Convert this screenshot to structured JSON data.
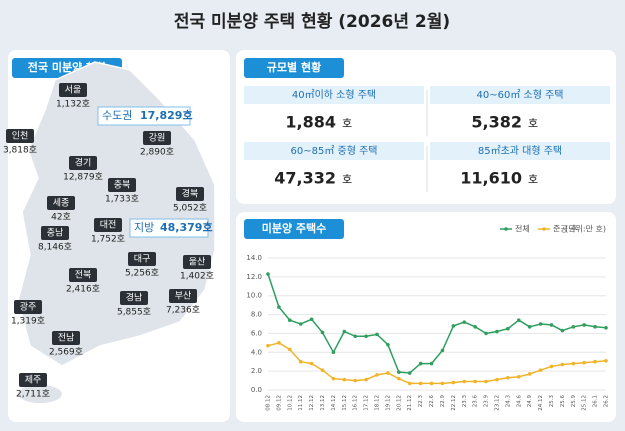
{
  "title": "전국 미분양 주택 현황 (2026년 2월)",
  "regional": {
    "heading": "전국 미분양 현황",
    "regions": [
      {
        "name": "서울",
        "value": "1,132호"
      },
      {
        "name": "인천",
        "value": "3,818호"
      },
      {
        "name": "강원",
        "value": "2,890호"
      },
      {
        "name": "경기",
        "value": "12,879호"
      },
      {
        "name": "충북",
        "value": "1,733호"
      },
      {
        "name": "경북",
        "value": "5,052호"
      },
      {
        "name": "세종",
        "value": "42호"
      },
      {
        "name": "충남",
        "value": "8,146호"
      },
      {
        "name": "대전",
        "value": "1,752호"
      },
      {
        "name": "대구",
        "value": "5,256호"
      },
      {
        "name": "울산",
        "value": "1,402호"
      },
      {
        "name": "전북",
        "value": "2,416호"
      },
      {
        "name": "경남",
        "value": "5,855호"
      },
      {
        "name": "부산",
        "value": "7,236호"
      },
      {
        "name": "광주",
        "value": "1,319호"
      },
      {
        "name": "전남",
        "value": "2,569호"
      },
      {
        "name": "제주",
        "value": "2,711호"
      }
    ],
    "metro": {
      "name": "수도권",
      "value": "17,829호"
    },
    "nonmetro": {
      "name": "지방",
      "value": "48,379호"
    }
  },
  "by_size": {
    "heading": "규모별 현황",
    "unit": "호",
    "cells": [
      {
        "label": "40㎡이하 소형 주택",
        "value": "1,884"
      },
      {
        "label": "40~60㎡ 소형 주택",
        "value": "5,382"
      },
      {
        "label": "60~85㎡ 중형 주택",
        "value": "47,332"
      },
      {
        "label": "85㎡초과 대형 주택",
        "value": "11,610"
      }
    ]
  },
  "chart_data": {
    "type": "line",
    "title": "미분양 주택수",
    "unit_note": "(단위:만 호)",
    "categories": [
      "08.12",
      "09.12",
      "10.12",
      "11.12",
      "12.12",
      "13.12",
      "14.12",
      "15.12",
      "16.12",
      "17.12",
      "18.12",
      "19.12",
      "20.12",
      "21.12",
      "22.3",
      "22.6",
      "22.9",
      "22.12",
      "23.3",
      "23.6",
      "23.9",
      "23.12",
      "24.3",
      "24.6",
      "24.9",
      "24.12",
      "25.3",
      "25.6",
      "25.9",
      "25.12",
      "26.1",
      "26.2"
    ],
    "series": [
      {
        "name": "전체",
        "color": "#2f9e5e",
        "values": [
          12.3,
          8.8,
          7.4,
          7.0,
          7.5,
          6.1,
          4.0,
          6.2,
          5.7,
          5.7,
          5.9,
          4.8,
          1.9,
          1.8,
          2.8,
          2.8,
          4.2,
          6.8,
          7.2,
          6.7,
          6.0,
          6.2,
          6.5,
          7.4,
          6.7,
          7.0,
          6.9,
          6.3,
          6.7,
          6.9,
          6.7,
          6.6
        ]
      },
      {
        "name": "준공 후",
        "color": "#f0b429",
        "values": [
          4.7,
          5.0,
          4.3,
          3.0,
          2.8,
          2.1,
          1.2,
          1.1,
          1.0,
          1.1,
          1.6,
          1.8,
          1.2,
          0.7,
          0.7,
          0.7,
          0.7,
          0.8,
          0.9,
          0.9,
          0.9,
          1.1,
          1.3,
          1.4,
          1.7,
          2.1,
          2.5,
          2.7,
          2.8,
          2.9,
          3.0,
          3.1
        ]
      }
    ],
    "ylim": [
      0,
      14
    ],
    "yticks": [
      {
        "value": 0,
        "label": "0.0"
      },
      {
        "value": 2,
        "label": "2.0"
      },
      {
        "value": 4,
        "label": "4.0"
      },
      {
        "value": 6,
        "label": "6.0"
      },
      {
        "value": 8,
        "label": "8.0"
      },
      {
        "value": 10,
        "label": "10.0"
      },
      {
        "value": 12,
        "label": "12.0"
      },
      {
        "value": 14,
        "label": "14.0"
      }
    ],
    "grid": true
  }
}
